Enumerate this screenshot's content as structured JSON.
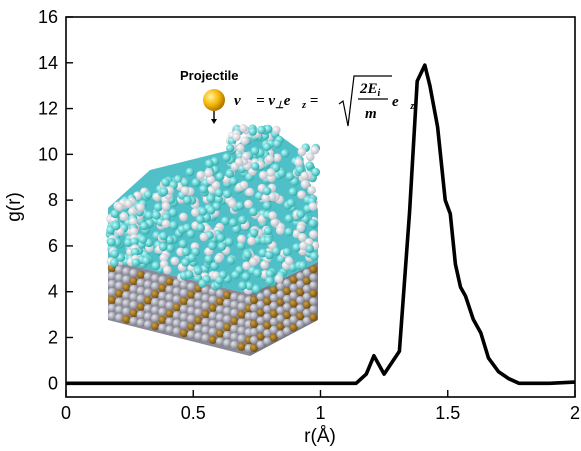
{
  "chart_data": {
    "type": "line",
    "title": "",
    "xlabel": "r(Å)",
    "ylabel": "g(r)",
    "xlim": [
      0,
      2
    ],
    "ylim": [
      -0.6,
      16
    ],
    "xticks": [
      0,
      0.5,
      1,
      1.5,
      2
    ],
    "xtick_labels": [
      "0",
      "0.5",
      "1",
      "1.5",
      "2"
    ],
    "yticks": [
      0,
      2,
      4,
      6,
      8,
      10,
      12,
      14,
      16
    ],
    "ytick_labels": [
      "0",
      "2",
      "4",
      "6",
      "8",
      "10",
      "12",
      "14",
      "16"
    ],
    "grid": false,
    "legend": "none",
    "series": [
      {
        "color": "#000000",
        "x": [
          0,
          1.14,
          1.18,
          1.21,
          1.25,
          1.31,
          1.35,
          1.38,
          1.41,
          1.43,
          1.46,
          1.49,
          1.51,
          1.53,
          1.55,
          1.57,
          1.6,
          1.63,
          1.66,
          1.7,
          1.74,
          1.78,
          1.82,
          1.9,
          2.0
        ],
        "y": [
          0,
          0,
          0.4,
          1.2,
          0.4,
          1.4,
          7.5,
          13.2,
          13.9,
          13.0,
          11.2,
          8.0,
          7.4,
          5.2,
          4.2,
          3.8,
          2.8,
          2.2,
          1.1,
          0.5,
          0.2,
          0.0,
          0.0,
          0.0,
          0.05
        ]
      }
    ]
  },
  "inset": {
    "projectile_label": "Projectile",
    "formula": "v⃗ = v⊥e⃗z = √(2Ei/m) e⃗z",
    "projectile_color": "#f5b400"
  }
}
